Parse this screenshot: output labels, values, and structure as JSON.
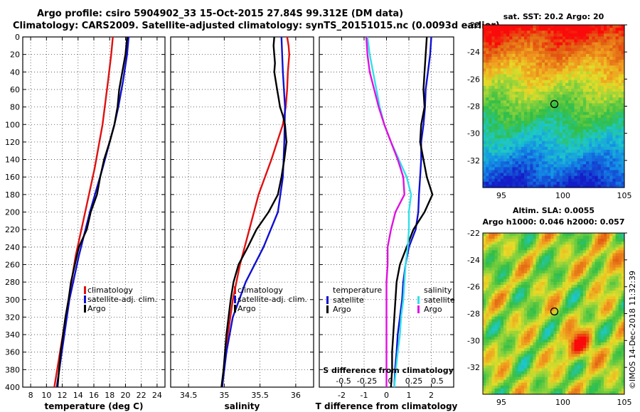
{
  "header": {
    "line1": "Argo profile: csiro 5904902_33 15-Oct-2015 27.84S 99.312E (DM data)",
    "line2": "Climatology: CARS2009. Satellite-adjusted climatology: synTS_20151015.nc (0.0093d earlier)"
  },
  "watermark": "©IMOS 14-Dec-2018 11:32:39",
  "colors": {
    "clim": "#e01010",
    "sat": "#1010d0",
    "argo": "#000000",
    "sdiff": "#30e0e8",
    "tsat_mag": "#e010e0"
  },
  "depth_axis": {
    "ticks": [
      0,
      20,
      40,
      60,
      80,
      100,
      120,
      140,
      160,
      180,
      200,
      220,
      240,
      260,
      280,
      300,
      320,
      340,
      360,
      380,
      400
    ],
    "range": [
      0,
      400
    ]
  },
  "chart_data": [
    {
      "type": "line",
      "name": "temperature",
      "xlabel": "temperature (deg C)",
      "xlim": [
        7,
        25
      ],
      "xticks": [
        8,
        10,
        12,
        14,
        16,
        18,
        20,
        22,
        24
      ],
      "series": [
        {
          "name": "climatology",
          "color": "#e01010",
          "depth": [
            0,
            20,
            50,
            100,
            150,
            200,
            250,
            300,
            350,
            400
          ],
          "values": [
            18.4,
            18.2,
            17.8,
            17.1,
            16.1,
            14.9,
            13.7,
            12.8,
            11.9,
            11.0
          ]
        },
        {
          "name": "satellite-adj. clim.",
          "color": "#1010d0",
          "depth": [
            0,
            20,
            50,
            80,
            100,
            150,
            200,
            250,
            300,
            350,
            400
          ],
          "values": [
            20.4,
            20.2,
            19.7,
            19.1,
            18.6,
            17.1,
            15.5,
            14.1,
            12.9,
            12.1,
            11.3
          ]
        },
        {
          "name": "Argo",
          "color": "#000000",
          "depth": [
            0,
            10,
            20,
            30,
            40,
            60,
            80,
            100,
            120,
            140,
            160,
            180,
            200,
            220,
            240,
            260,
            280,
            300,
            320,
            340,
            360,
            380,
            400
          ],
          "values": [
            20.2,
            20.1,
            20.0,
            19.8,
            19.6,
            19.2,
            19.0,
            18.6,
            18.0,
            17.3,
            16.8,
            16.4,
            15.6,
            15.1,
            14.1,
            13.6,
            13.1,
            12.8,
            12.4,
            12.1,
            11.8,
            11.6,
            11.4
          ]
        }
      ],
      "legend": [
        "climatology",
        "satellite-adj. clim.",
        "Argo"
      ]
    },
    {
      "type": "line",
      "name": "salinity",
      "xlabel": "salinity",
      "xlim": [
        34.25,
        36.25
      ],
      "xticks": [
        34.5,
        35,
        35.5,
        36
      ],
      "xtick_labels": [
        "34.5",
        "35",
        "35.5",
        "36"
      ],
      "series": [
        {
          "name": "climatology",
          "color": "#e01010",
          "depth": [
            0,
            10,
            20,
            40,
            60,
            80,
            100,
            140,
            180,
            220,
            260,
            300,
            340,
            400
          ],
          "values": [
            35.88,
            35.9,
            35.91,
            35.89,
            35.88,
            35.86,
            35.82,
            35.66,
            35.48,
            35.35,
            35.22,
            35.12,
            35.05,
            34.97
          ]
        },
        {
          "name": "satellite-adj. clim.",
          "color": "#1010d0",
          "depth": [
            0,
            20,
            40,
            80,
            120,
            160,
            200,
            240,
            280,
            320,
            360,
            400
          ],
          "values": [
            35.8,
            35.81,
            35.82,
            35.85,
            35.84,
            35.82,
            35.75,
            35.55,
            35.3,
            35.12,
            35.03,
            34.97
          ]
        },
        {
          "name": "Argo",
          "color": "#000000",
          "depth": [
            0,
            10,
            20,
            30,
            40,
            50,
            60,
            70,
            80,
            90,
            100,
            120,
            140,
            160,
            180,
            200,
            220,
            240,
            260,
            280,
            300,
            320,
            340,
            360,
            380,
            400
          ],
          "values": [
            35.7,
            35.69,
            35.7,
            35.71,
            35.7,
            35.72,
            35.74,
            35.76,
            35.78,
            35.82,
            35.85,
            35.87,
            35.84,
            35.8,
            35.75,
            35.62,
            35.45,
            35.33,
            35.2,
            35.13,
            35.09,
            35.06,
            35.03,
            35.01,
            34.99,
            34.96
          ]
        }
      ],
      "legend": [
        "climatology",
        "satellite-adj. clim.",
        "Argo"
      ]
    },
    {
      "type": "line",
      "name": "difference",
      "xlabel": "T difference from climatology",
      "xlim": [
        -3,
        3
      ],
      "xticks": [
        -2,
        -1,
        0,
        1,
        2
      ],
      "top_axis_label": "S difference from climatology",
      "top_ticks": [
        -0.5,
        -0.25,
        0,
        0.25,
        0.5
      ],
      "top_tick_labels": [
        "-0.5",
        "-0.25",
        "0",
        "0.25",
        "0.5"
      ],
      "series": [
        {
          "name": "temperature satellite",
          "color": "#1010d0",
          "depth": [
            0,
            20,
            40,
            60,
            80,
            100,
            120,
            140,
            160,
            180,
            200,
            220,
            240,
            260,
            280,
            300,
            320,
            340,
            360,
            380,
            400
          ],
          "values": [
            2.0,
            1.95,
            1.85,
            1.75,
            1.72,
            1.65,
            1.55,
            1.55,
            1.5,
            1.45,
            1.42,
            1.3,
            1.0,
            0.85,
            0.75,
            0.7,
            0.6,
            0.5,
            0.45,
            0.38,
            0.35
          ]
        },
        {
          "name": "temperature Argo",
          "color": "#000000",
          "depth": [
            0,
            20,
            40,
            60,
            80,
            100,
            120,
            140,
            160,
            180,
            200,
            220,
            240,
            260,
            280,
            300,
            320,
            340,
            360,
            380,
            400
          ],
          "values": [
            1.8,
            1.75,
            1.7,
            1.65,
            1.7,
            1.55,
            1.5,
            1.65,
            1.8,
            2.05,
            1.7,
            1.2,
            0.9,
            0.6,
            0.45,
            0.4,
            0.35,
            0.3,
            0.25,
            0.25,
            0.2
          ]
        },
        {
          "name": "salinity satellite",
          "color": "#30e0e8",
          "depth": [
            0,
            20,
            40,
            60,
            80,
            100,
            120,
            140,
            160,
            180,
            200,
            220,
            240,
            260,
            280,
            300,
            320,
            340,
            360,
            380,
            400
          ],
          "values": [
            -0.85,
            -0.75,
            -0.6,
            -0.45,
            -0.3,
            -0.1,
            0.2,
            0.55,
            0.9,
            1.1,
            1.0,
            1.0,
            0.95,
            0.85,
            0.8,
            0.75,
            0.65,
            0.6,
            0.5,
            0.42,
            0.35
          ]
        },
        {
          "name": "salinity Argo",
          "color": "#e010e0",
          "depth": [
            0,
            20,
            40,
            60,
            80,
            100,
            120,
            140,
            160,
            180,
            190,
            200,
            220,
            240,
            260,
            280,
            300,
            320,
            340,
            360,
            380,
            400
          ],
          "values": [
            -0.9,
            -0.85,
            -0.75,
            -0.55,
            -0.35,
            -0.1,
            0.2,
            0.5,
            0.75,
            0.8,
            0.6,
            0.4,
            0.2,
            0.05,
            0.05,
            0.0,
            0.0,
            0.0,
            0.0,
            0.0,
            0.0,
            0.0
          ]
        }
      ],
      "legend_temperature": {
        "title": "temperature",
        "items": [
          "satellite",
          "Argo"
        ]
      },
      "legend_salinity": {
        "title": "salinity",
        "items": [
          "satellite",
          "Argo"
        ]
      }
    },
    {
      "type": "heatmap",
      "name": "sst_map",
      "title": "sat. SST: 20.2 Argo: 20",
      "xlim": [
        93.5,
        105
      ],
      "ylim": [
        -34,
        -22
      ],
      "xticks": [
        95,
        100,
        105
      ],
      "yticks": [
        -22,
        -24,
        -26,
        -28,
        -30,
        -32
      ],
      "marker": {
        "lon": 99.312,
        "lat": -27.84
      }
    },
    {
      "type": "heatmap",
      "name": "sla_map",
      "title": "Altim. SLA: 0.0055",
      "subtitle": "Argo h1000: 0.046 h2000: 0.057",
      "xlim": [
        93.5,
        105
      ],
      "ylim": [
        -34,
        -22
      ],
      "xticks": [
        95,
        100,
        105
      ],
      "yticks": [
        -22,
        -24,
        -26,
        -28,
        -30,
        -32
      ],
      "marker": {
        "lon": 99.312,
        "lat": -27.84
      }
    }
  ]
}
